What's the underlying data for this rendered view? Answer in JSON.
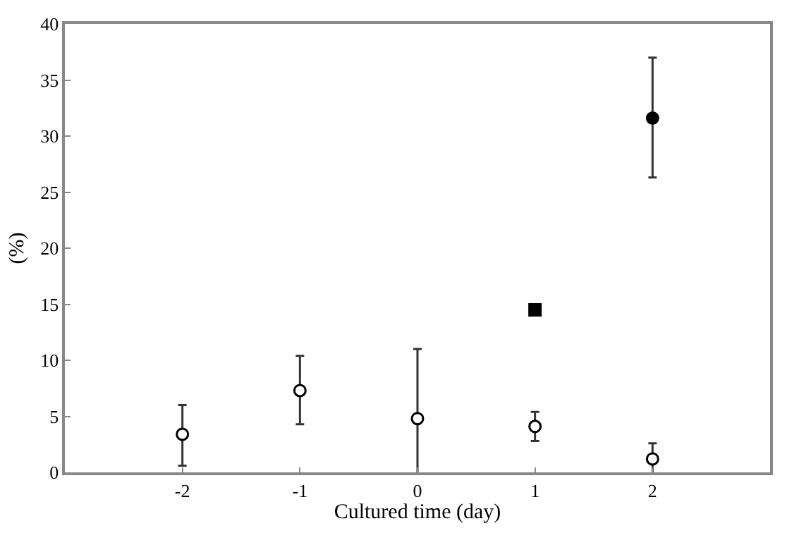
{
  "chart_data": {
    "type": "scatter",
    "xlabel": "Cultured time (day)",
    "ylabel": "(%)",
    "xlim": [
      -3,
      3
    ],
    "xticks": [
      -2,
      -1,
      0,
      1,
      2
    ],
    "ylim": [
      0,
      40
    ],
    "yticks": [
      0,
      5,
      10,
      15,
      20,
      25,
      30,
      35,
      40
    ],
    "series": [
      {
        "x": [
          -2,
          -1,
          0,
          1,
          2
        ],
        "values": [
          3.4,
          7.3,
          4.8,
          4.1,
          1.2
        ],
        "errors": [
          [
            0.6,
            6.0
          ],
          [
            4.3,
            10.4
          ],
          [
            -0.7,
            11.0
          ],
          [
            2.8,
            5.4
          ],
          [
            -0.3,
            2.6
          ]
        ],
        "color": "#ffffff",
        "marker": "circle"
      },
      {
        "x": [
          1
        ],
        "values": [
          14.5
        ],
        "color": "#000000",
        "marker": "square"
      },
      {
        "x": [
          2
        ],
        "values": [
          31.6
        ],
        "errors": [
          [
            26.3,
            37.0
          ]
        ],
        "color": "#000000",
        "marker": "circle"
      }
    ]
  }
}
